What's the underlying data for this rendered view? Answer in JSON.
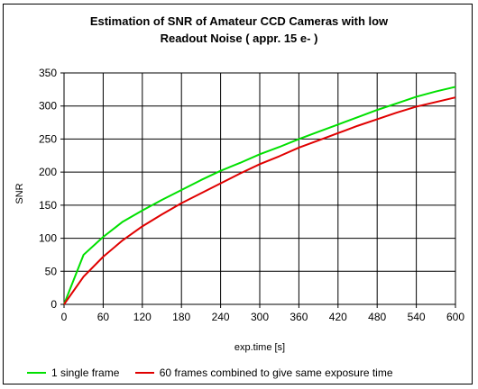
{
  "chart_data": {
    "type": "line",
    "title_line1": "Estimation of SNR of Amateur CCD Cameras with low",
    "title_line2": "Readout Noise ( appr. 15 e-    )",
    "xlabel": "exp.time [s]",
    "ylabel": "SNR",
    "xlim": [
      0,
      600
    ],
    "ylim": [
      0,
      350
    ],
    "x_ticks": [
      "0",
      "60",
      "120",
      "180",
      "240",
      "300",
      "360",
      "420",
      "480",
      "540",
      "600"
    ],
    "y_ticks": [
      "0",
      "50",
      "100",
      "150",
      "200",
      "250",
      "300",
      "350"
    ],
    "grid": true,
    "legend_position": "bottom",
    "x": [
      0,
      30,
      60,
      90,
      120,
      150,
      180,
      210,
      240,
      270,
      300,
      330,
      360,
      390,
      420,
      450,
      480,
      510,
      540,
      570,
      600
    ],
    "series": [
      {
        "name": "1 single frame",
        "color": "#00e000",
        "values": [
          0,
          75,
          102,
          125,
          142,
          158,
          173,
          188,
          202,
          214,
          227,
          238,
          250,
          261,
          272,
          283,
          294,
          304,
          314,
          322,
          329
        ]
      },
      {
        "name": "60 frames combined to give same exposure time",
        "color": "#e00000",
        "values": [
          0,
          42,
          72,
          97,
          118,
          136,
          153,
          168,
          183,
          198,
          212,
          224,
          237,
          248,
          259,
          270,
          280,
          290,
          299,
          306,
          313
        ]
      }
    ]
  }
}
